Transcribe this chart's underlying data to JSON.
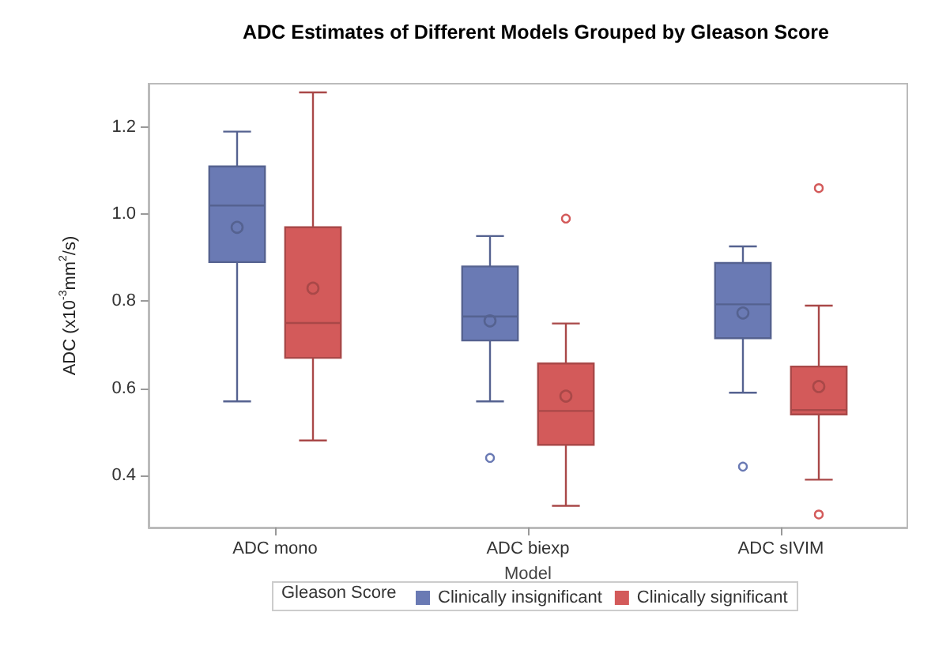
{
  "chart_data": {
    "type": "box",
    "title": "ADC Estimates of Different Models Grouped by Gleason Score",
    "xlabel": "Model",
    "ylabel": "ADC (x10$^{-3}$mm$^{2}$/s)",
    "legend_title": "Gleason Score",
    "legend": "bottom",
    "grid": false,
    "categories": [
      "ADC mono",
      "ADC biexp",
      "ADC sIVIM"
    ],
    "ylim": [
      0.28,
      1.3
    ],
    "yticks": [
      0.4,
      0.6,
      0.8,
      {
        "value": 1,
        "label": "1.0"
      },
      1.2
    ],
    "series": [
      {
        "name": "Clinically insignificant",
        "color": "#6a7ab4",
        "boxes": [
          {
            "low": 0.57,
            "q1": 0.89,
            "median": 1.02,
            "q3": 1.11,
            "high": 1.19,
            "mean": 0.97
          },
          {
            "low": 0.57,
            "q1": 0.71,
            "median": 0.765,
            "q3": 0.88,
            "high": 0.95,
            "mean": 0.755,
            "outliers": [
              0.44
            ]
          },
          {
            "low": 0.59,
            "q1": 0.715,
            "median": 0.793,
            "q3": 0.888,
            "high": 0.926,
            "mean": 0.773,
            "outliers": [
              0.42
            ]
          }
        ]
      },
      {
        "name": "Clinically significant",
        "color": "#d35a5a",
        "boxes": [
          {
            "low": 0.48,
            "q1": 0.67,
            "median": 0.75,
            "q3": 0.97,
            "high": 1.28,
            "mean": 0.83
          },
          {
            "low": 0.33,
            "q1": 0.47,
            "median": 0.548,
            "q3": 0.657,
            "high": 0.749,
            "mean": 0.582,
            "outliers": [
              0.99
            ]
          },
          {
            "low": 0.39,
            "q1": 0.54,
            "median": 0.55,
            "q3": 0.65,
            "high": 0.79,
            "mean": 0.604,
            "outliers": [
              1.06,
              0.31
            ]
          }
        ]
      }
    ]
  }
}
